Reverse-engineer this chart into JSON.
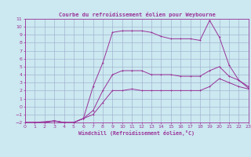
{
  "title": "Courbe du refroidissement éolien pour Weybourne",
  "xlabel": "Windchill (Refroidissement éolien,°C)",
  "bg_color": "#cce8f0",
  "grid_color": "#99aacc",
  "line_color": "#993399",
  "xlim": [
    0,
    23
  ],
  "ylim": [
    -2,
    11
  ],
  "xticks": [
    0,
    1,
    2,
    3,
    4,
    5,
    6,
    7,
    8,
    9,
    10,
    11,
    12,
    13,
    14,
    15,
    16,
    17,
    18,
    19,
    20,
    21,
    22,
    23
  ],
  "yticks": [
    -2,
    -1,
    0,
    1,
    2,
    3,
    4,
    5,
    6,
    7,
    8,
    9,
    10,
    11
  ],
  "line1_x": [
    0,
    1,
    2,
    3,
    4,
    5,
    6,
    7,
    8,
    9,
    10,
    11,
    12,
    13,
    14,
    15,
    16,
    17,
    18,
    19,
    20,
    21,
    22,
    23
  ],
  "line1_y": [
    -2,
    -2,
    -2,
    -1.8,
    -2,
    -2,
    -1.5,
    -1,
    0.5,
    2,
    2,
    2.2,
    2,
    2,
    2,
    2,
    2,
    2,
    2,
    2.5,
    3.5,
    3,
    2.5,
    2.2
  ],
  "line2_x": [
    0,
    1,
    2,
    3,
    4,
    5,
    6,
    7,
    8,
    9,
    10,
    11,
    12,
    13,
    14,
    15,
    16,
    17,
    18,
    19,
    20,
    21,
    22,
    23
  ],
  "line2_y": [
    -2,
    -2,
    -2,
    -1.8,
    -2,
    -2,
    -1.5,
    -0.5,
    2,
    4,
    4.5,
    4.5,
    4.5,
    4,
    4,
    4,
    3.8,
    3.8,
    3.8,
    4.5,
    5,
    3.8,
    3.3,
    2.5
  ],
  "line3_x": [
    0,
    1,
    3,
    4,
    5,
    6,
    7,
    8,
    9,
    10,
    11,
    12,
    13,
    14,
    15,
    16,
    17,
    18,
    19,
    20,
    21,
    22,
    23
  ],
  "line3_y": [
    -2,
    -2,
    -1.8,
    -2,
    -2,
    -1.5,
    2.5,
    5.5,
    9.3,
    9.5,
    9.5,
    9.5,
    9.3,
    8.8,
    8.5,
    8.5,
    8.5,
    8.3,
    10.8,
    8.7,
    5.2,
    3.3,
    2.3
  ]
}
